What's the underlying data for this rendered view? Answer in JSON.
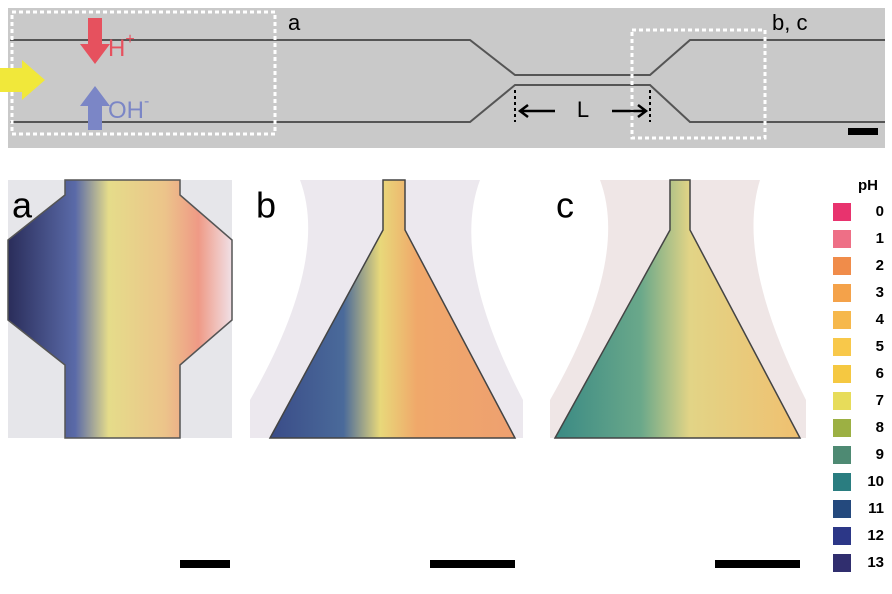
{
  "top_panel": {
    "box_labels": [
      "a",
      "b, c"
    ],
    "acid": {
      "base": "H",
      "sup": "+"
    },
    "base": {
      "base": "OH",
      "sup": "-"
    },
    "length_label": "L"
  },
  "panels": [
    {
      "label": "a"
    },
    {
      "label": "b"
    },
    {
      "label": "c"
    }
  ],
  "legend": {
    "title": "pH",
    "items": [
      {
        "label": "0",
        "color": "#e8336e"
      },
      {
        "label": "1",
        "color": "#ee6f86"
      },
      {
        "label": "2",
        "color": "#f08c4a"
      },
      {
        "label": "3",
        "color": "#f4a24a"
      },
      {
        "label": "4",
        "color": "#f6b84c"
      },
      {
        "label": "5",
        "color": "#f8c84a"
      },
      {
        "label": "6",
        "color": "#f5c841"
      },
      {
        "label": "7",
        "color": "#e7dc5a"
      },
      {
        "label": "8",
        "color": "#9cb043"
      },
      {
        "label": "9",
        "color": "#4e8a73"
      },
      {
        "label": "10",
        "color": "#2a7d80"
      },
      {
        "label": "11",
        "color": "#24497d"
      },
      {
        "label": "12",
        "color": "#2c3787"
      },
      {
        "label": "13",
        "color": "#302e6e"
      }
    ]
  }
}
